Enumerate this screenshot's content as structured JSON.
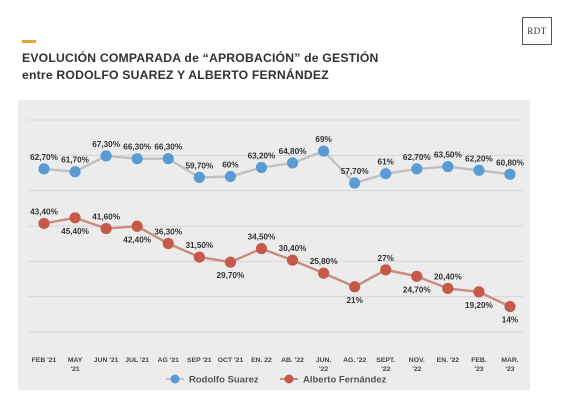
{
  "header": {
    "title_line1": "EVOLUCIÓN COMPARADA de “APROBACIÓN” de GESTIÓN",
    "title_line2": "entre RODOLFO SUAREZ Y ALBERTO FERNÁNDEZ",
    "brand": "RDT"
  },
  "colors": {
    "accent": "#e8a33a",
    "series_suarez": "#5b9bd5",
    "series_fernandez": "#c55a4a",
    "line_suarez": "#c0c0c0",
    "line_fernandez": "#c98a7f"
  },
  "chart_data": {
    "type": "line",
    "categories": [
      [
        "FEB '21"
      ],
      [
        "MAY",
        "'21"
      ],
      [
        "JUN '21"
      ],
      [
        "JUL '21"
      ],
      [
        "AG '21"
      ],
      [
        "SEP '21"
      ],
      [
        "OCT '21"
      ],
      [
        "EN. 22"
      ],
      [
        "AB. '22"
      ],
      [
        "JUN.",
        "'22"
      ],
      [
        "AG. '22"
      ],
      [
        "SEPT.",
        "'22"
      ],
      [
        "NOV.",
        "'22"
      ],
      [
        "EN. '22"
      ],
      [
        "FEB.",
        "'23"
      ],
      [
        "MAR.",
        "'23"
      ]
    ],
    "series": [
      {
        "name": "Rodolfo Suarez",
        "values": [
          62.7,
          61.7,
          67.3,
          66.3,
          66.3,
          59.7,
          60,
          63.2,
          64.8,
          69,
          57.7,
          61,
          62.7,
          63.5,
          62.2,
          60.8
        ],
        "labels": [
          "62,70%",
          "61,70%",
          "67,30%",
          "66,30%",
          "66,30%",
          "59,70%",
          "60%",
          "63,20%",
          "64,80%",
          "69%",
          "57,70%",
          "61%",
          "62,70%",
          "63,50%",
          "62,20%",
          "60,80%"
        ]
      },
      {
        "name": "Alberto Fernández",
        "values": [
          43.4,
          45.4,
          41.6,
          42.4,
          36.3,
          31.5,
          29.7,
          34.5,
          30.4,
          25.8,
          21,
          27,
          24.7,
          20.4,
          19.2,
          14
        ],
        "labels": [
          "43,40%",
          "45,40%",
          "41,60%",
          "42,40%",
          "36,30%",
          "31,50%",
          "29,70%",
          "34,50%",
          "30,40%",
          "25,80%",
          "21%",
          "27%",
          "24,70%",
          "20,40%",
          "19,20%",
          "14%"
        ]
      }
    ],
    "ylim": [
      5,
      80
    ],
    "grid": "horizontal",
    "legend": "bottom-center"
  }
}
